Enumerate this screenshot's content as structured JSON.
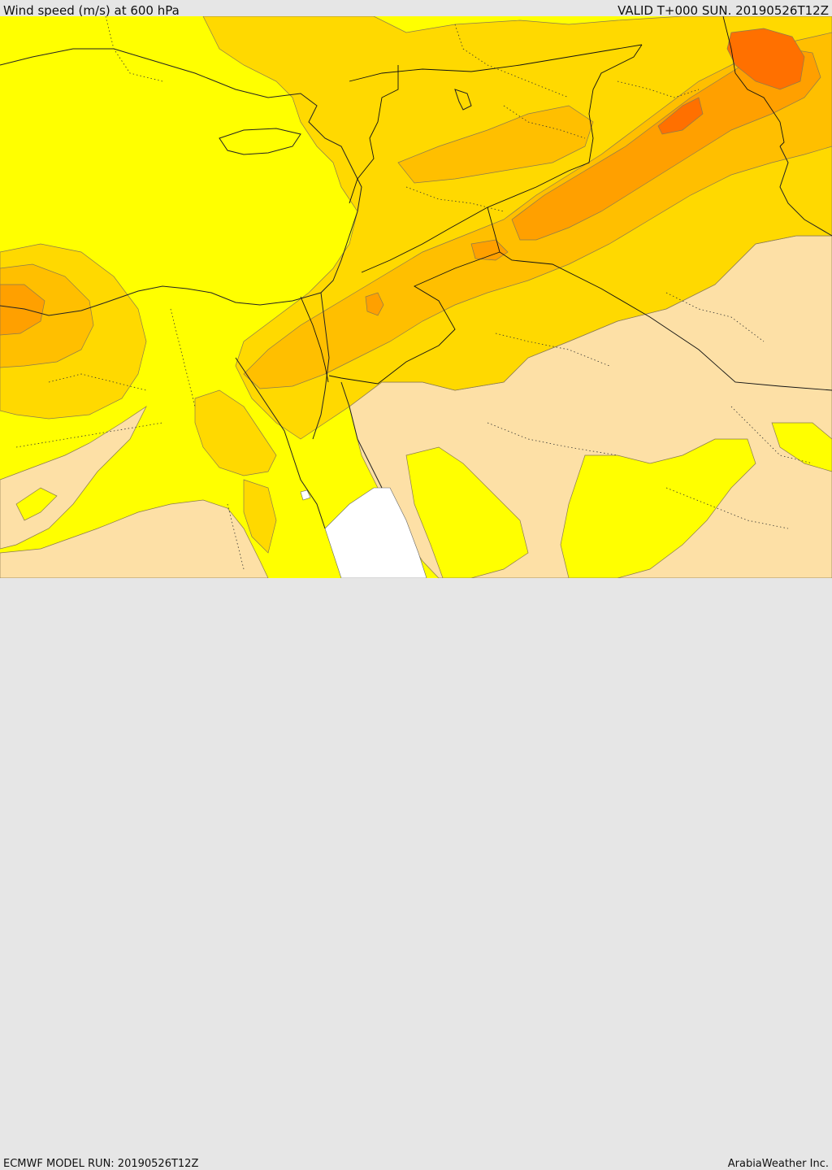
{
  "header": {
    "title": "Wind speed (m/s) at 600 hPa",
    "valid": "VALID T+000 SUN. 20190526T12Z"
  },
  "footer": {
    "model_run": "ECMWF MODEL RUN: 20190526T12Z",
    "credit": "ArabiaWeather Inc."
  },
  "map": {
    "variable": "wind speed",
    "level": "600 hPa",
    "colors": {
      "lowest": "#fde0a6",
      "low": "#ffff00",
      "moderate": "#ffd900",
      "elevated": "#ffbf00",
      "high": "#ffa000",
      "highest": "#ff7000",
      "no_data": "#ffffff"
    }
  }
}
